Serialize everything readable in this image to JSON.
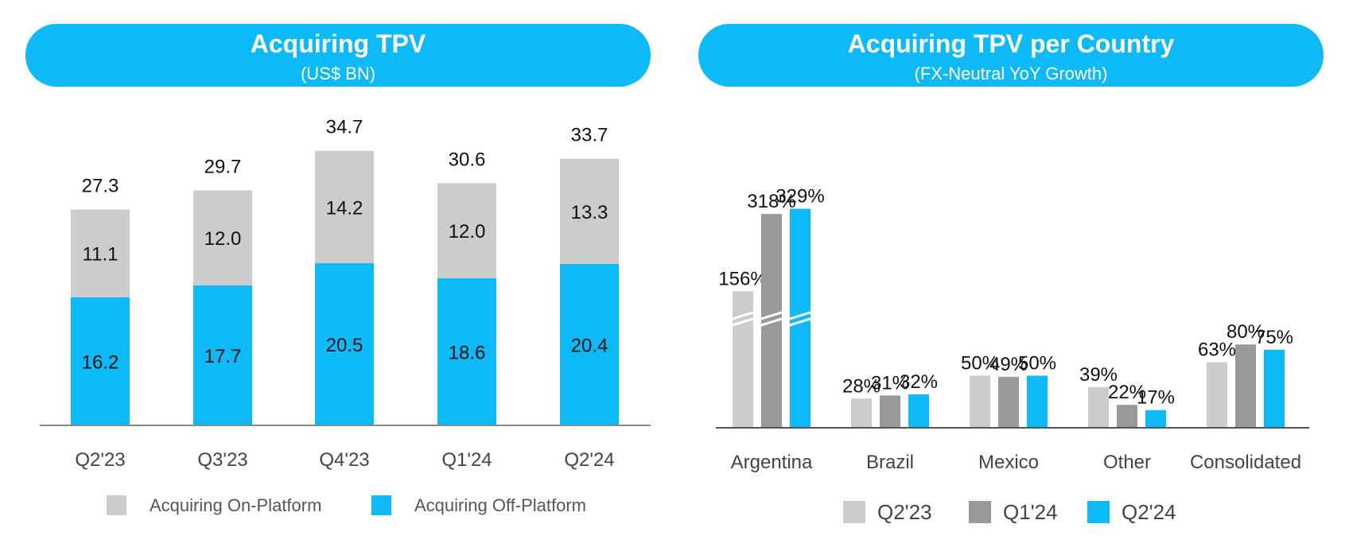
{
  "chart_data": [
    {
      "type": "bar",
      "stacked": true,
      "title": "Acquiring TPV",
      "subtitle": "(US$ BN)",
      "categories": [
        "Q2'23",
        "Q3'23",
        "Q4'23",
        "Q1'24",
        "Q2'24"
      ],
      "series": [
        {
          "name": "Acquiring Off-Platform",
          "color": "#0EB9F7",
          "values": [
            16.2,
            17.7,
            20.5,
            18.6,
            20.4
          ]
        },
        {
          "name": "Acquiring On-Platform",
          "color": "#CCCCCC",
          "values": [
            11.1,
            12.0,
            14.2,
            12.0,
            13.3
          ]
        }
      ],
      "totals": [
        "27.3",
        "29.7",
        "34.7",
        "30.6",
        "33.7"
      ],
      "value_labels": {
        "Acquiring Off-Platform": [
          "16.2",
          "17.7",
          "20.5",
          "18.6",
          "20.4"
        ],
        "Acquiring On-Platform": [
          "11.1",
          "12.0",
          "14.2",
          "12.0",
          "13.3"
        ]
      },
      "ylim": [
        0,
        40
      ],
      "grid": false,
      "legend_position": "bottom",
      "legend": [
        {
          "label": "Acquiring On-Platform",
          "color": "#CCCCCC"
        },
        {
          "label": "Acquiring Off-Platform",
          "color": "#0EB9F7"
        }
      ]
    },
    {
      "type": "bar",
      "title": "Acquiring TPV per Country",
      "subtitle": "(FX-Neutral YoY Growth)",
      "categories": [
        "Argentina",
        "Brazil",
        "Mexico",
        "Other",
        "Consolidated"
      ],
      "series": [
        {
          "name": "Q2'23",
          "color": "#CCCCCC",
          "values": [
            156,
            28,
            50,
            39,
            63
          ],
          "labels": [
            "156%",
            "28%",
            "50%",
            "39%",
            "63%"
          ]
        },
        {
          "name": "Q1'24",
          "color": "#999999",
          "values": [
            318,
            31,
            49,
            22,
            80
          ],
          "labels": [
            "318%",
            "31%",
            "49%",
            "22%",
            "80%"
          ]
        },
        {
          "name": "Q2'24",
          "color": "#0EB9F7",
          "values": [
            329,
            32,
            50,
            17,
            75
          ],
          "labels": [
            "329%",
            "32%",
            "50%",
            "17%",
            "75%"
          ]
        }
      ],
      "axis_break": true,
      "grid": false,
      "legend_position": "bottom",
      "legend": [
        {
          "label": "Q2'23",
          "color": "#CCCCCC"
        },
        {
          "label": "Q1'24",
          "color": "#999999"
        },
        {
          "label": "Q2'24",
          "color": "#0EB9F7"
        }
      ]
    }
  ]
}
